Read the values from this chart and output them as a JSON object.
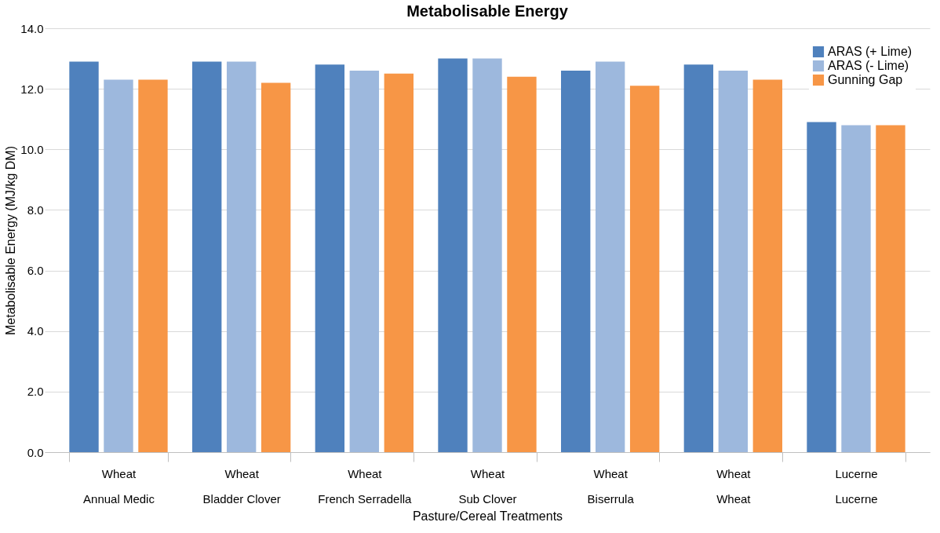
{
  "chart_data": {
    "type": "bar",
    "title": "Metabolisable Energy",
    "xlabel": "Pasture/Cereal Treatments",
    "ylabel": "Metabolisable Energy (MJ/kg DM)",
    "categories": [
      "Wheat\nAnnual Medic",
      "Wheat\nBladder Clover",
      "Wheat\nFrench Serradella",
      "Wheat\nSub Clover",
      "Wheat\nBiserrula",
      "Wheat\nWheat",
      "Lucerne\nLucerne"
    ],
    "series": [
      {
        "name": "ARAS (+ Lime)",
        "color": "#4f81bd",
        "values": [
          12.9,
          12.9,
          12.8,
          13.0,
          12.6,
          12.8,
          10.9
        ]
      },
      {
        "name": "ARAS (- Lime)",
        "color": "#9db8dd",
        "values": [
          12.3,
          12.9,
          12.6,
          13.0,
          12.9,
          12.6,
          10.8
        ]
      },
      {
        "name": "Gunning Gap",
        "color": "#f79646",
        "values": [
          12.3,
          12.2,
          12.5,
          12.4,
          12.1,
          12.3,
          10.8
        ]
      }
    ],
    "ylim": [
      0,
      14
    ],
    "yticks": [
      {
        "value": 0,
        "label": "0.0"
      },
      {
        "value": 2,
        "label": "2.0"
      },
      {
        "value": 4,
        "label": "4.0"
      },
      {
        "value": 6,
        "label": "6.0"
      },
      {
        "value": 8,
        "label": "8.0"
      },
      {
        "value": 10,
        "label": "10.0"
      },
      {
        "value": 12,
        "label": "12.0"
      },
      {
        "value": 14,
        "label": "14.0"
      }
    ],
    "grid": "y",
    "legend": "top right"
  }
}
